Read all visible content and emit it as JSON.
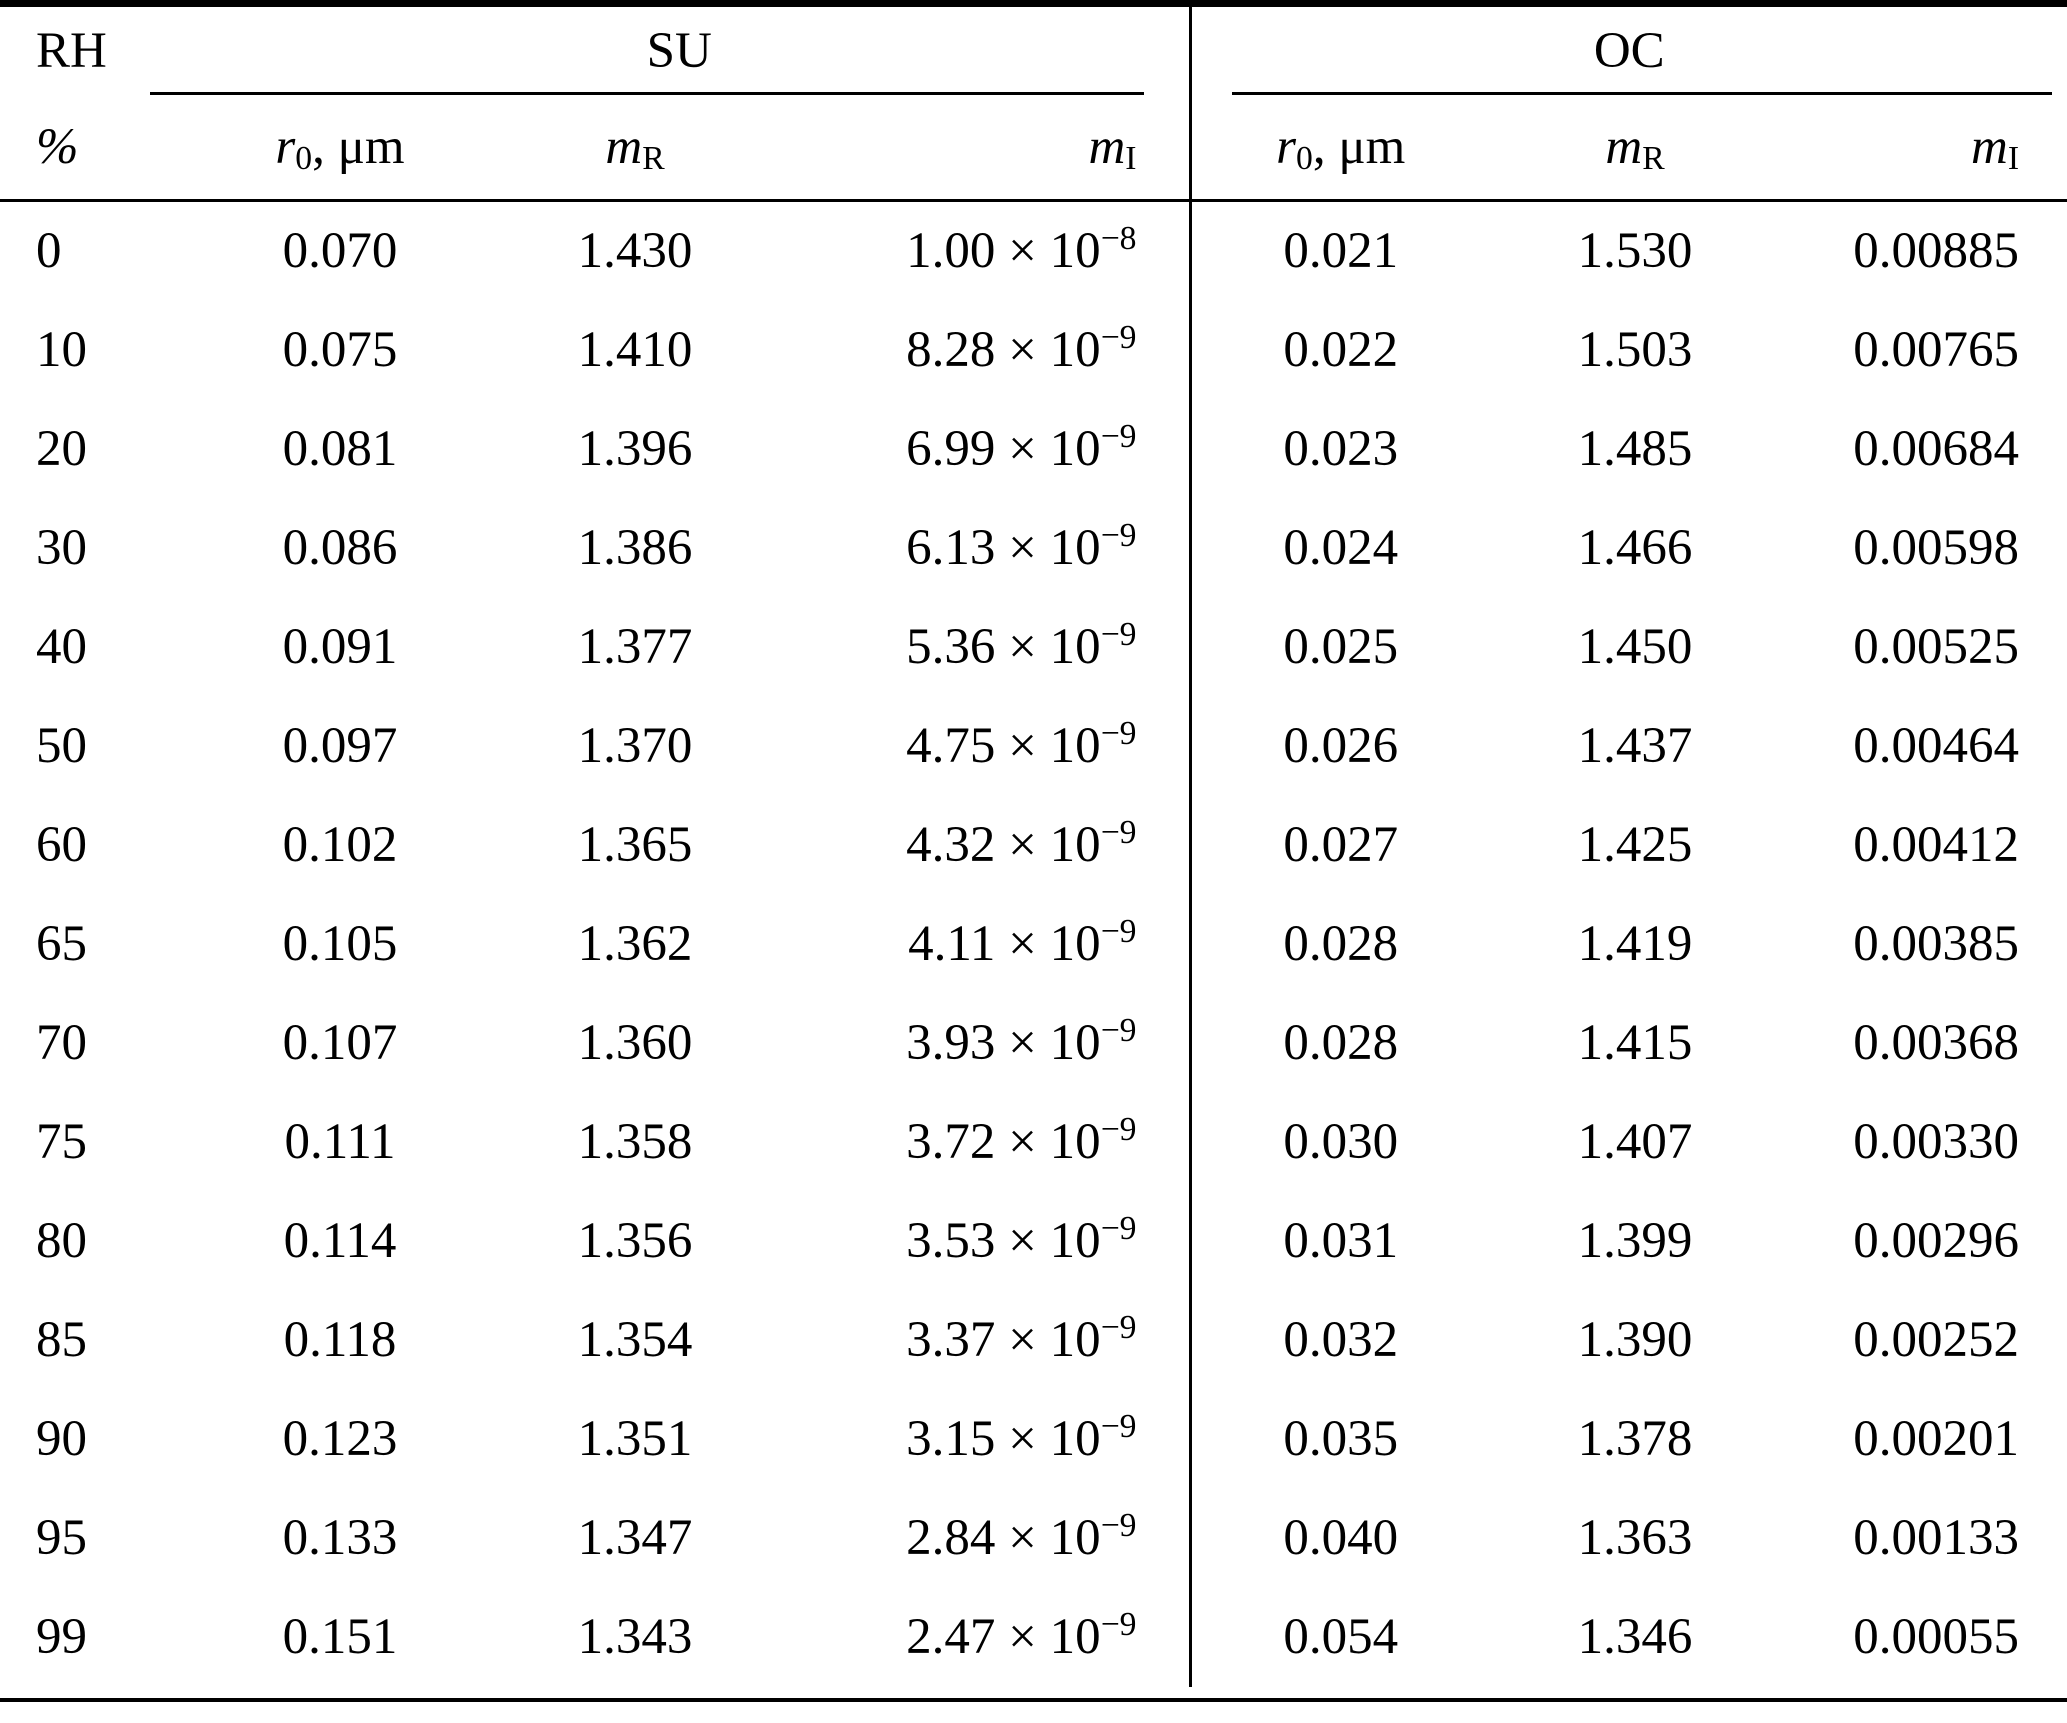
{
  "table": {
    "col_header_top": "RH",
    "col_header_unit": "%",
    "groups": [
      {
        "label": "SU"
      },
      {
        "label": "OC"
      }
    ],
    "subheaders": {
      "r0": {
        "base": "r",
        "sub": "0",
        "suffix": ", μm"
      },
      "mR": {
        "base": "m",
        "sub": "R"
      },
      "mI": {
        "base": "m",
        "sub": "I"
      }
    },
    "notation": {
      "times": "×",
      "base": "10"
    }
  },
  "chart_data": {
    "type": "table",
    "columns": [
      "RH %",
      "SU r0, μm",
      "SU mR",
      "SU mI",
      "OC r0, μm",
      "OC mR",
      "OC mI"
    ],
    "rows": [
      {
        "rh": "0",
        "su_r0": "0.070",
        "su_mR": "1.430",
        "su_mI_coeff": "1.00",
        "su_mI_exp": "−8",
        "oc_r0": "0.021",
        "oc_mR": "1.530",
        "oc_mI": "0.00885"
      },
      {
        "rh": "10",
        "su_r0": "0.075",
        "su_mR": "1.410",
        "su_mI_coeff": "8.28",
        "su_mI_exp": "−9",
        "oc_r0": "0.022",
        "oc_mR": "1.503",
        "oc_mI": "0.00765"
      },
      {
        "rh": "20",
        "su_r0": "0.081",
        "su_mR": "1.396",
        "su_mI_coeff": "6.99",
        "su_mI_exp": "−9",
        "oc_r0": "0.023",
        "oc_mR": "1.485",
        "oc_mI": "0.00684"
      },
      {
        "rh": "30",
        "su_r0": "0.086",
        "su_mR": "1.386",
        "su_mI_coeff": "6.13",
        "su_mI_exp": "−9",
        "oc_r0": "0.024",
        "oc_mR": "1.466",
        "oc_mI": "0.00598"
      },
      {
        "rh": "40",
        "su_r0": "0.091",
        "su_mR": "1.377",
        "su_mI_coeff": "5.36",
        "su_mI_exp": "−9",
        "oc_r0": "0.025",
        "oc_mR": "1.450",
        "oc_mI": "0.00525"
      },
      {
        "rh": "50",
        "su_r0": "0.097",
        "su_mR": "1.370",
        "su_mI_coeff": "4.75",
        "su_mI_exp": "−9",
        "oc_r0": "0.026",
        "oc_mR": "1.437",
        "oc_mI": "0.00464"
      },
      {
        "rh": "60",
        "su_r0": "0.102",
        "su_mR": "1.365",
        "su_mI_coeff": "4.32",
        "su_mI_exp": "−9",
        "oc_r0": "0.027",
        "oc_mR": "1.425",
        "oc_mI": "0.00412"
      },
      {
        "rh": "65",
        "su_r0": "0.105",
        "su_mR": "1.362",
        "su_mI_coeff": "4.11",
        "su_mI_exp": "−9",
        "oc_r0": "0.028",
        "oc_mR": "1.419",
        "oc_mI": "0.00385"
      },
      {
        "rh": "70",
        "su_r0": "0.107",
        "su_mR": "1.360",
        "su_mI_coeff": "3.93",
        "su_mI_exp": "−9",
        "oc_r0": "0.028",
        "oc_mR": "1.415",
        "oc_mI": "0.00368"
      },
      {
        "rh": "75",
        "su_r0": "0.111",
        "su_mR": "1.358",
        "su_mI_coeff": "3.72",
        "su_mI_exp": "−9",
        "oc_r0": "0.030",
        "oc_mR": "1.407",
        "oc_mI": "0.00330"
      },
      {
        "rh": "80",
        "su_r0": "0.114",
        "su_mR": "1.356",
        "su_mI_coeff": "3.53",
        "su_mI_exp": "−9",
        "oc_r0": "0.031",
        "oc_mR": "1.399",
        "oc_mI": "0.00296"
      },
      {
        "rh": "85",
        "su_r0": "0.118",
        "su_mR": "1.354",
        "su_mI_coeff": "3.37",
        "su_mI_exp": "−9",
        "oc_r0": "0.032",
        "oc_mR": "1.390",
        "oc_mI": "0.00252"
      },
      {
        "rh": "90",
        "su_r0": "0.123",
        "su_mR": "1.351",
        "su_mI_coeff": "3.15",
        "su_mI_exp": "−9",
        "oc_r0": "0.035",
        "oc_mR": "1.378",
        "oc_mI": "0.00201"
      },
      {
        "rh": "95",
        "su_r0": "0.133",
        "su_mR": "1.347",
        "su_mI_coeff": "2.84",
        "su_mI_exp": "−9",
        "oc_r0": "0.040",
        "oc_mR": "1.363",
        "oc_mI": "0.00133"
      },
      {
        "rh": "99",
        "su_r0": "0.151",
        "su_mR": "1.343",
        "su_mI_coeff": "2.47",
        "su_mI_exp": "−9",
        "oc_r0": "0.054",
        "oc_mR": "1.346",
        "oc_mI": "0.00055"
      }
    ]
  }
}
